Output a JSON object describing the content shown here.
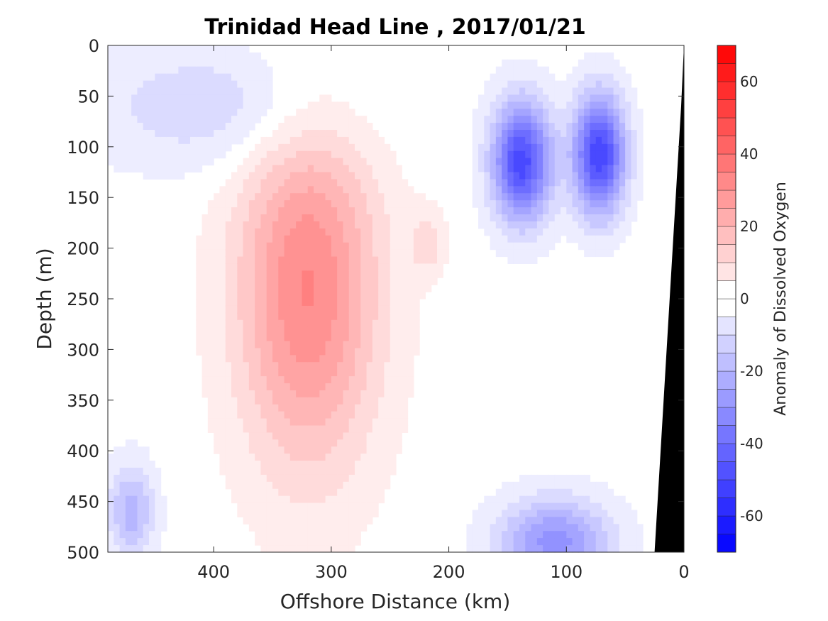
{
  "chart_data": {
    "type": "heatmap",
    "title": "Trinidad Head Line , 2017/01/21",
    "xlabel": "Offshore Distance (km)",
    "ylabel": "Depth (m)",
    "colorbar_label": "Anomaly of Dissolved Oxygen",
    "xlim": [
      490,
      0
    ],
    "ylim": [
      0,
      500
    ],
    "x_reversed": true,
    "y_reversed": true,
    "xticks": [
      400,
      300,
      200,
      100,
      0
    ],
    "yticks": [
      0,
      50,
      100,
      150,
      200,
      250,
      300,
      350,
      400,
      450,
      500
    ],
    "clim": [
      -70,
      70
    ],
    "cbar_ticks": [
      60,
      40,
      20,
      0,
      -20,
      -40,
      -60
    ],
    "contour_interval": 5,
    "zero_contour": true,
    "bathymetry_color": "#000000",
    "colors": {
      "positive": "#ff0000",
      "negative": "#0000ff",
      "neutral": "#ffffff"
    },
    "features": [
      {
        "kind": "positive_anomaly",
        "x_center": 320,
        "depth_center": 240,
        "x_halfwidth": 75,
        "depth_halfwidth": 220,
        "peak": 33
      },
      {
        "kind": "positive_anomaly",
        "x_center": 218,
        "depth_center": 195,
        "x_halfwidth": 18,
        "depth_halfwidth": 40,
        "peak": 10
      },
      {
        "kind": "negative_anomaly",
        "x_center": 138,
        "depth_center": 115,
        "x_halfwidth": 32,
        "depth_halfwidth": 75,
        "peak": -50
      },
      {
        "kind": "negative_anomaly",
        "x_center": 72,
        "depth_center": 108,
        "x_halfwidth": 28,
        "depth_halfwidth": 75,
        "peak": -52
      },
      {
        "kind": "negative_anomaly",
        "x_center": 110,
        "depth_center": 490,
        "x_halfwidth": 60,
        "depth_halfwidth": 55,
        "peak": -30
      },
      {
        "kind": "negative_anomaly",
        "x_center": 470,
        "depth_center": 460,
        "x_halfwidth": 25,
        "depth_halfwidth": 60,
        "peak": -20
      },
      {
        "kind": "negative_anomaly",
        "x_center": 390,
        "depth_center": 60,
        "x_halfwidth": 150,
        "depth_halfwidth": 80,
        "peak": -12
      }
    ]
  }
}
